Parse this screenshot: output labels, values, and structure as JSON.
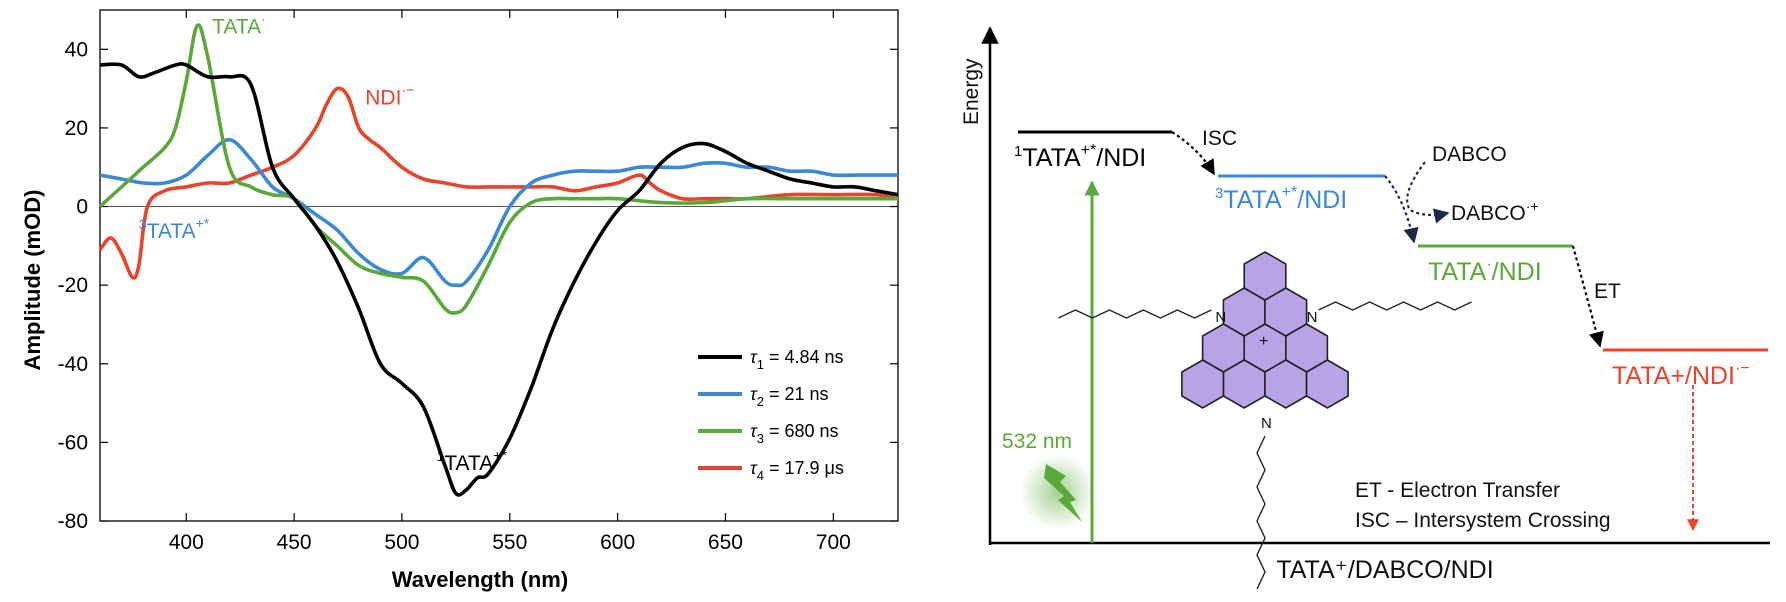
{
  "chart_data": [
    {
      "type": "line",
      "xlabel": "Wavelength (nm)",
      "ylabel": "Amplitude (mOD)",
      "xlim": [
        360,
        730
      ],
      "ylim": [
        -80,
        50
      ],
      "xticks": [
        400,
        450,
        500,
        550,
        600,
        650,
        700
      ],
      "yticks": [
        40,
        20,
        0,
        -20,
        -40,
        -60,
        -80
      ],
      "legend_position": "bottom-right",
      "series": [
        {
          "name": "τ1 = 4.84 ns",
          "legend_symbol": "τ",
          "legend_sub": "1",
          "legend_value": " = 4.84 ns",
          "color": "#000000",
          "x": [
            360,
            370,
            378,
            385,
            395,
            400,
            410,
            420,
            430,
            440,
            450,
            460,
            470,
            480,
            490,
            500,
            510,
            520,
            525,
            530,
            535,
            540,
            550,
            560,
            570,
            580,
            590,
            600,
            610,
            620,
            630,
            640,
            650,
            660,
            670,
            680,
            690,
            700,
            710,
            720,
            730
          ],
          "y": [
            36,
            36,
            33,
            34,
            36,
            36,
            33,
            33,
            31,
            10,
            2,
            -5,
            -14,
            -26,
            -40,
            -45,
            -51,
            -66,
            -73,
            -72,
            -69,
            -68,
            -59,
            -46,
            -31,
            -19,
            -9,
            -1,
            4,
            11,
            15,
            16,
            14,
            11,
            9,
            7,
            6,
            5,
            5,
            4,
            3
          ]
        },
        {
          "name": "τ2 = 21 ns",
          "legend_symbol": "τ",
          "legend_sub": "2",
          "legend_value": " = 21 ns",
          "color": "#3a88d6",
          "x": [
            360,
            370,
            380,
            390,
            400,
            410,
            420,
            430,
            440,
            450,
            460,
            470,
            480,
            490,
            500,
            510,
            520,
            525,
            530,
            540,
            550,
            560,
            570,
            580,
            590,
            600,
            610,
            620,
            630,
            640,
            650,
            660,
            670,
            680,
            690,
            700,
            710,
            720,
            730
          ],
          "y": [
            8,
            7,
            6,
            6,
            8,
            13,
            17,
            12,
            5,
            2,
            -2,
            -6,
            -12,
            -16,
            -17,
            -13,
            -19,
            -20,
            -19,
            -11,
            0,
            6,
            8,
            9,
            9,
            9,
            10,
            10,
            10,
            11,
            11,
            10,
            10,
            9,
            9,
            8,
            8,
            8,
            8
          ]
        },
        {
          "name": "τ3 = 680 ns",
          "legend_symbol": "τ",
          "legend_sub": "3",
          "legend_value": " = 680 ns",
          "color": "#5aa839",
          "x": [
            360,
            370,
            380,
            390,
            395,
            400,
            405,
            410,
            420,
            430,
            440,
            450,
            460,
            470,
            480,
            490,
            500,
            510,
            520,
            525,
            530,
            540,
            550,
            560,
            570,
            580,
            590,
            600,
            620,
            640,
            660,
            680,
            700,
            730
          ],
          "y": [
            0,
            5,
            10,
            15,
            20,
            32,
            46,
            38,
            10,
            5,
            3,
            2,
            -5,
            -10,
            -15,
            -17,
            -18,
            -19,
            -26,
            -27,
            -25,
            -15,
            -4,
            1,
            2,
            2,
            2,
            2,
            1,
            1,
            2,
            2,
            2,
            2
          ]
        },
        {
          "name": "τ4 = 17.9 μs",
          "legend_symbol": "τ",
          "legend_sub": "4",
          "legend_value": " = 17.9 μs",
          "color": "#e8432c",
          "x": [
            360,
            365,
            370,
            375,
            378,
            382,
            390,
            400,
            410,
            420,
            430,
            440,
            450,
            460,
            465,
            470,
            475,
            480,
            485,
            490,
            500,
            510,
            520,
            530,
            540,
            550,
            560,
            570,
            580,
            590,
            600,
            610,
            615,
            620,
            630,
            640,
            650,
            660,
            680,
            700,
            720,
            730
          ],
          "y": [
            -11,
            -8,
            -12,
            -18,
            -15,
            0,
            4,
            5,
            6,
            6,
            8,
            10,
            13,
            20,
            26,
            30,
            28,
            20,
            17,
            15,
            10,
            7,
            6,
            5,
            5,
            5,
            5,
            5,
            4,
            5,
            6,
            8,
            6,
            4,
            2,
            2,
            2,
            2,
            3,
            3,
            3,
            2
          ]
        }
      ],
      "annotations": [
        {
          "text": "TATA",
          "sup": "·",
          "color": "#5aa839",
          "x": 412,
          "y": 44
        },
        {
          "text": "NDI",
          "sup": "·−",
          "color": "#e8432c",
          "x": 483,
          "y": 26
        },
        {
          "text": "TATA",
          "pre_sup": "3",
          "sup": "+*",
          "color": "#3a88d6",
          "x": 378,
          "y": -8
        },
        {
          "text": "TATA",
          "pre_sup": "1",
          "sup": "+*",
          "color": "#000000",
          "x": 516,
          "y": -67
        }
      ]
    },
    {
      "type": "diagram",
      "xlabel": "TATA⁺/DABCO/NDI",
      "ylabel": "Energy",
      "levels": [
        {
          "label": "TATA",
          "pre_sup": "1",
          "sup": "+*",
          "suffix": "/NDI",
          "color": "#000000"
        },
        {
          "label": "TATA",
          "pre_sup": "3",
          "sup": "+*",
          "suffix": "/NDI",
          "color": "#3a88d6"
        },
        {
          "label": "TATA",
          "sup": "·",
          "suffix": "/NDI",
          "color": "#5aa839"
        },
        {
          "label": "TATA+/NDI",
          "sup": "·−",
          "color": "#e8432c"
        }
      ],
      "transitions": {
        "isc": "ISC",
        "dabco": "DABCO",
        "dabco_cation": "DABCO",
        "dabco_cation_sup": "·+",
        "et": "ET"
      },
      "excitation": "532 nm",
      "molecule_atoms": {
        "n": "N",
        "plus": "+"
      },
      "legend_lines": [
        "ET - Electron Transfer",
        "ISC – Intersystem Crossing"
      ]
    }
  ]
}
